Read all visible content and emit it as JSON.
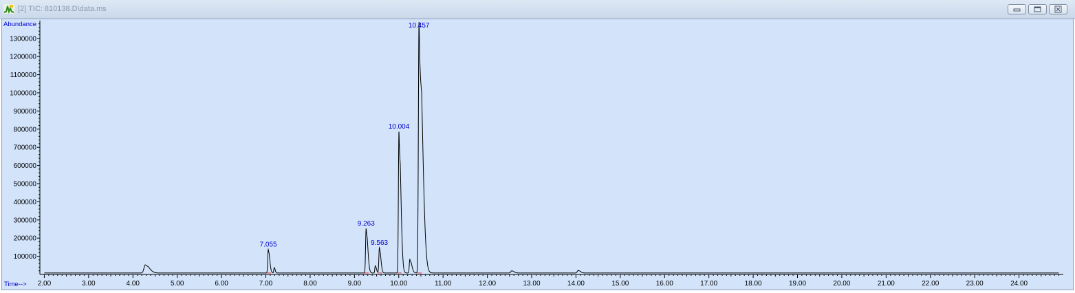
{
  "window": {
    "title": "[2] TIC: 810138.D\\data.ms",
    "icon": "chromatogram-icon"
  },
  "chart_data": {
    "type": "line",
    "ylabel": "Abundance",
    "xlabel": "Time-->",
    "xlim": [
      1.9,
      25.0
    ],
    "ylim": [
      0,
      1390000
    ],
    "x_ticks": [
      "2.00",
      "3.00",
      "4.00",
      "5.00",
      "6.00",
      "7.00",
      "8.00",
      "9.00",
      "10.00",
      "11.00",
      "12.00",
      "13.00",
      "14.00",
      "15.00",
      "16.00",
      "17.00",
      "18.00",
      "19.00",
      "20.00",
      "21.00",
      "22.00",
      "23.00",
      "24.00"
    ],
    "y_ticks": [
      "100000",
      "200000",
      "300000",
      "400000",
      "500000",
      "600000",
      "700000",
      "800000",
      "900000",
      "1000000",
      "1100000",
      "1200000",
      "1300000"
    ],
    "background": "#d2e3fa",
    "series": [
      {
        "color": "#000000",
        "baseline": 8000,
        "peaks": [
          {
            "rt": 4.28,
            "height": 45000,
            "width": 0.03,
            "tail": 0.06
          },
          {
            "rt": 7.055,
            "height": 130000,
            "width": 0.012,
            "tail": 0.02
          },
          {
            "rt": 7.19,
            "height": 30000,
            "width": 0.01,
            "tail": 0.01
          },
          {
            "rt": 9.263,
            "height": 245000,
            "width": 0.012,
            "tail": 0.025
          },
          {
            "rt": 9.47,
            "height": 40000,
            "width": 0.01,
            "tail": 0.015
          },
          {
            "rt": 9.563,
            "height": 140000,
            "width": 0.012,
            "tail": 0.02
          },
          {
            "rt": 10.004,
            "height": 780000,
            "width": 0.012,
            "tail": 0.03
          },
          {
            "rt": 10.25,
            "height": 75000,
            "width": 0.012,
            "tail": 0.03
          },
          {
            "rt": 10.457,
            "height": 1385000,
            "width": 0.014,
            "tail": 0.06
          },
          {
            "rt": 12.55,
            "height": 12000,
            "width": 0.02,
            "tail": 0.03
          },
          {
            "rt": 14.05,
            "height": 14000,
            "width": 0.02,
            "tail": 0.03
          }
        ]
      }
    ],
    "peak_labels": [
      {
        "rt": 7.055,
        "label": "7.055"
      },
      {
        "rt": 9.263,
        "label": "9.263"
      },
      {
        "rt": 9.563,
        "label": "9.563"
      },
      {
        "rt": 10.004,
        "label": "10.004"
      },
      {
        "rt": 10.457,
        "label": "10.457"
      }
    ],
    "grid": false
  }
}
